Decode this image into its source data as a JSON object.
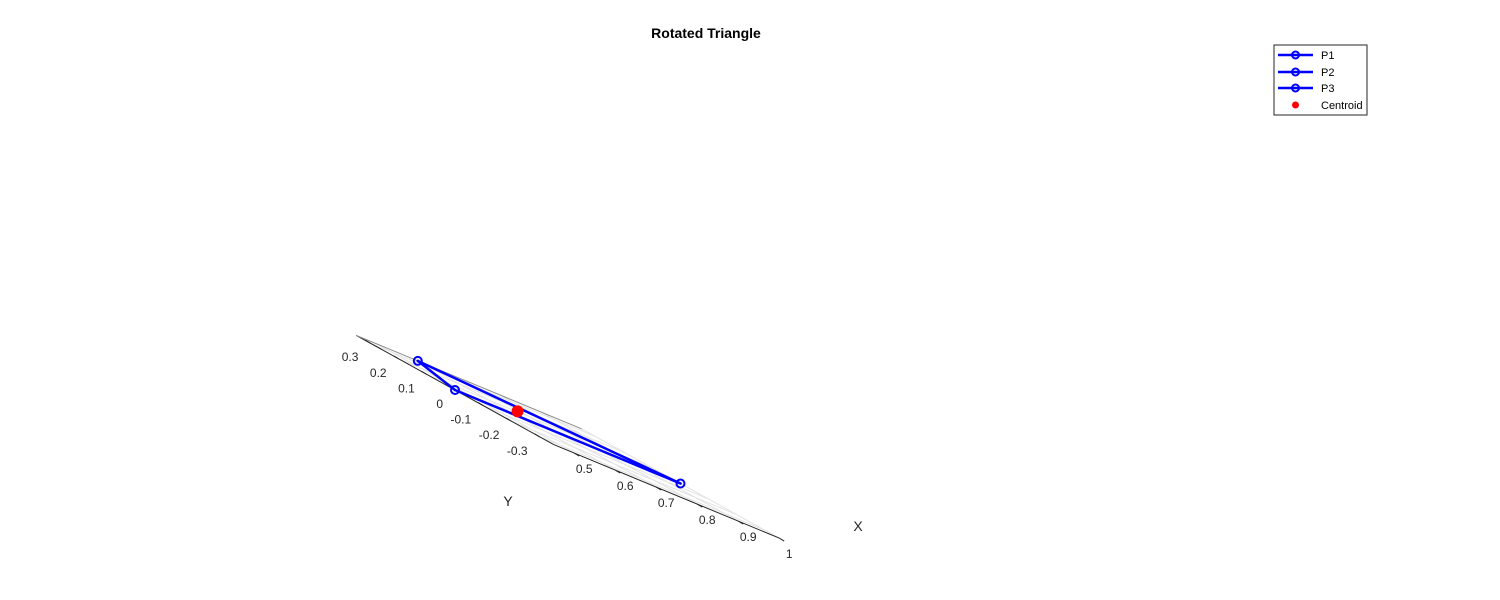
{
  "chart_data": {
    "type": "line",
    "title": "Rotated Triangle",
    "xlabel": "X",
    "ylabel": "Y",
    "xlim": [
      0.45,
      1.0
    ],
    "ylim": [
      -0.35,
      0.35
    ],
    "x_ticks": [
      0.5,
      0.6,
      0.7,
      0.8,
      0.9,
      1
    ],
    "x_tick_labels": [
      "0.5",
      "0.6",
      "0.7",
      "0.8",
      "0.9",
      "1"
    ],
    "y_ticks": [
      -0.3,
      -0.2,
      -0.1,
      0,
      0.1,
      0.2,
      0.3
    ],
    "y_tick_labels": [
      "-0.3",
      "-0.2",
      "-0.1",
      "0",
      "0.1",
      "0.2",
      "0.3"
    ],
    "grid": true,
    "legend_position": "top-right",
    "triangle_color": "#0000ff",
    "centroid_color": "#ff0000",
    "points": [
      {
        "name": "P1",
        "x": 0.45,
        "y": 0.0
      },
      {
        "name": "P2",
        "x": 0.6,
        "y": 0.35
      },
      {
        "name": "P3",
        "x": 1.0,
        "y": 0.0
      }
    ],
    "centroid": {
      "name": "Centroid",
      "x": 0.683,
      "y": 0.117
    },
    "legend": [
      "P1",
      "P2",
      "P3",
      "Centroid"
    ]
  }
}
